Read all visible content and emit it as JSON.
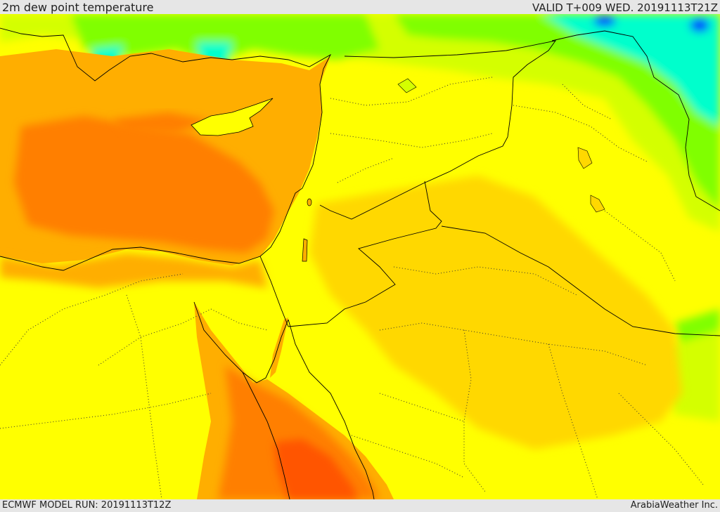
{
  "header": {
    "title": "2m dew point temperature",
    "valid": "VALID T+009 WED. 20191113T21Z"
  },
  "footer": {
    "model_run": "ECMWF MODEL RUN: 20191113T12Z",
    "credit": "ArabiaWeather Inc."
  },
  "palette": {
    "dark_orange": "#ff7f00",
    "orange": "#ffae00",
    "gold": "#ffd800",
    "yellow": "#ffff00",
    "yellow_green": "#d4ff00",
    "green": "#80ff00",
    "cyan": "#00ffcc",
    "blue": "#0044ff"
  }
}
